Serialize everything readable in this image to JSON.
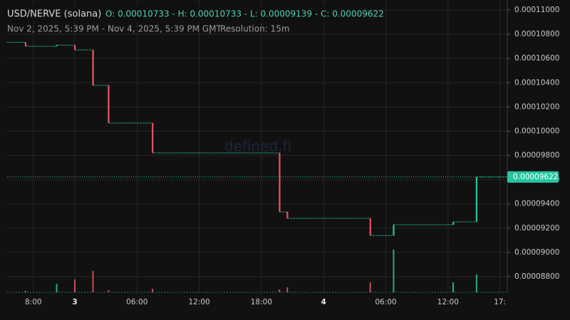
{
  "header": {
    "pair": "USD/NERVE (solana)",
    "ohlc": "O: 0.00010733 - H: 0.00010733 - L: 0.00009139 - C: 0.00009622",
    "range": "Nov 2, 2025, 5:39 PM - Nov 4, 2025, 5:39 PM GMT",
    "separator": "|",
    "resolution": "Resolution: 15m"
  },
  "watermark": "defined.fi",
  "chart_data": {
    "type": "candlestick",
    "x": [
      19.25,
      22.25,
      24,
      25.75,
      27.25,
      31.5,
      43.75,
      44.5,
      52.5,
      54.75,
      60.5,
      62.75
    ],
    "open": [
      0.00010733,
      0.000107,
      0.0001071,
      0.0001067,
      0.00010378,
      0.00010067,
      9.821e-05,
      9.334e-05,
      9.281e-05,
      9.139e-05,
      9.228e-05,
      9.252e-05
    ],
    "close": [
      0.000107,
      0.0001071,
      0.0001067,
      0.00010378,
      0.00010067,
      9.821e-05,
      9.334e-05,
      9.281e-05,
      9.139e-05,
      9.228e-05,
      9.252e-05,
      9.622e-05
    ],
    "volume": [
      2,
      12,
      18,
      30,
      3,
      5,
      4,
      7,
      14,
      60,
      14,
      25
    ],
    "up_color": "#26c6a0",
    "down_color": "#ef5361",
    "xlim": [
      17.47,
      65.72
    ],
    "xticks": [
      {
        "value": 20,
        "label": "8:00"
      },
      {
        "value": 24,
        "label": "3"
      },
      {
        "value": 30,
        "label": "06:00"
      },
      {
        "value": 36,
        "label": "12:00"
      },
      {
        "value": 42,
        "label": "18:00"
      },
      {
        "value": 48,
        "label": "4"
      },
      {
        "value": 54,
        "label": "06:00"
      },
      {
        "value": 60,
        "label": "12:00"
      },
      {
        "value": 65,
        "label": "17:"
      }
    ],
    "ylim": [
      8.671e-05,
      0.00011035
    ],
    "yticks": [
      {
        "value": 8.8e-05,
        "label": "0.00008800"
      },
      {
        "value": 9e-05,
        "label": "0.00009000"
      },
      {
        "value": 9.2e-05,
        "label": "0.00009200"
      },
      {
        "value": 9.4e-05,
        "label": "0.00009400"
      },
      {
        "value": 9.6e-05,
        "label": "0.00009600"
      },
      {
        "value": 9.8e-05,
        "label": "0.00009800"
      },
      {
        "value": 0.0001,
        "label": "0.00010000"
      },
      {
        "value": 0.000102,
        "label": "0.00010200"
      },
      {
        "value": 0.000104,
        "label": "0.00010400"
      },
      {
        "value": 0.000106,
        "label": "0.00010600"
      },
      {
        "value": 0.000108,
        "label": "0.00010800"
      },
      {
        "value": 0.00011,
        "label": "0.00011000"
      }
    ],
    "grid": true
  }
}
